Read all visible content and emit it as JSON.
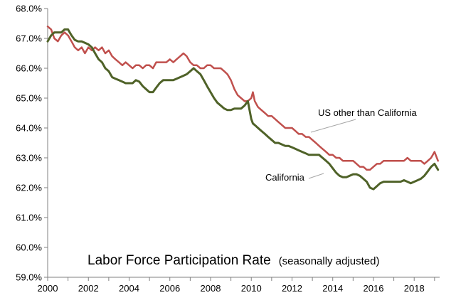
{
  "chart_data": {
    "type": "line",
    "title": "Labor Force Participation Rate",
    "subtitle": "(seasonally adjusted)",
    "xlabel": "",
    "ylabel": "",
    "xlim": [
      2000,
      2019.25
    ],
    "ylim": [
      59.0,
      68.0
    ],
    "x_ticks": [
      "2000",
      "2002",
      "2004",
      "2006",
      "2008",
      "2010",
      "2012",
      "2014",
      "2016",
      "2018"
    ],
    "y_ticks": [
      "59.0%",
      "60.0%",
      "61.0%",
      "62.0%",
      "63.0%",
      "64.0%",
      "65.0%",
      "66.0%",
      "67.0%",
      "68.0%"
    ],
    "grid": false,
    "legend": "none",
    "series": [
      {
        "name": "US other than California",
        "color": "#c0504d",
        "x": [
          2000.0,
          2000.17,
          2000.33,
          2000.5,
          2000.67,
          2000.83,
          2001.0,
          2001.17,
          2001.33,
          2001.5,
          2001.67,
          2001.83,
          2002.0,
          2002.17,
          2002.33,
          2002.5,
          2002.67,
          2002.83,
          2003.0,
          2003.17,
          2003.33,
          2003.5,
          2003.67,
          2003.83,
          2004.0,
          2004.17,
          2004.33,
          2004.5,
          2004.67,
          2004.83,
          2005.0,
          2005.17,
          2005.33,
          2005.5,
          2005.67,
          2005.83,
          2006.0,
          2006.17,
          2006.33,
          2006.5,
          2006.67,
          2006.83,
          2007.0,
          2007.17,
          2007.33,
          2007.5,
          2007.67,
          2007.83,
          2008.0,
          2008.17,
          2008.33,
          2008.5,
          2008.67,
          2008.83,
          2009.0,
          2009.17,
          2009.33,
          2009.5,
          2009.67,
          2009.83,
          2010.0,
          2010.08,
          2010.17,
          2010.33,
          2010.5,
          2010.67,
          2010.83,
          2011.0,
          2011.17,
          2011.33,
          2011.5,
          2011.67,
          2011.83,
          2012.0,
          2012.17,
          2012.33,
          2012.5,
          2012.67,
          2012.83,
          2013.0,
          2013.17,
          2013.33,
          2013.5,
          2013.67,
          2013.83,
          2014.0,
          2014.17,
          2014.33,
          2014.5,
          2014.67,
          2014.83,
          2015.0,
          2015.17,
          2015.33,
          2015.5,
          2015.67,
          2015.83,
          2016.0,
          2016.17,
          2016.33,
          2016.5,
          2016.67,
          2016.83,
          2017.0,
          2017.17,
          2017.33,
          2017.5,
          2017.67,
          2017.83,
          2018.0,
          2018.17,
          2018.33,
          2018.5,
          2018.67,
          2018.83,
          2019.0,
          2019.17
        ],
        "y": [
          67.4,
          67.3,
          67.0,
          66.9,
          67.1,
          67.2,
          67.1,
          66.9,
          66.7,
          66.6,
          66.7,
          66.5,
          66.7,
          66.6,
          66.7,
          66.6,
          66.7,
          66.5,
          66.6,
          66.4,
          66.3,
          66.2,
          66.1,
          66.2,
          66.1,
          66.0,
          66.1,
          66.1,
          66.0,
          66.1,
          66.1,
          66.0,
          66.2,
          66.2,
          66.2,
          66.2,
          66.3,
          66.2,
          66.3,
          66.4,
          66.5,
          66.4,
          66.2,
          66.1,
          66.1,
          66.0,
          66.0,
          66.1,
          66.1,
          66.0,
          66.0,
          66.0,
          65.9,
          65.8,
          65.6,
          65.3,
          65.1,
          65.0,
          64.9,
          64.9,
          65.0,
          65.2,
          64.9,
          64.7,
          64.6,
          64.5,
          64.4,
          64.4,
          64.3,
          64.2,
          64.1,
          64.0,
          64.0,
          64.0,
          63.9,
          63.8,
          63.8,
          63.7,
          63.7,
          63.6,
          63.5,
          63.4,
          63.3,
          63.2,
          63.1,
          63.1,
          63.0,
          63.0,
          62.9,
          62.9,
          62.9,
          62.9,
          62.8,
          62.7,
          62.7,
          62.6,
          62.6,
          62.7,
          62.8,
          62.8,
          62.9,
          62.9,
          62.9,
          62.9,
          62.9,
          62.9,
          62.9,
          63.0,
          62.9,
          62.9,
          62.9,
          62.9,
          62.8,
          62.9,
          63.0,
          63.2,
          62.9
        ]
      },
      {
        "name": "California",
        "color": "#4f6228",
        "x": [
          2000.0,
          2000.17,
          2000.33,
          2000.5,
          2000.67,
          2000.83,
          2001.0,
          2001.17,
          2001.33,
          2001.5,
          2001.67,
          2001.83,
          2002.0,
          2002.17,
          2002.33,
          2002.5,
          2002.67,
          2002.83,
          2003.0,
          2003.17,
          2003.33,
          2003.5,
          2003.67,
          2003.83,
          2004.0,
          2004.17,
          2004.33,
          2004.5,
          2004.67,
          2004.83,
          2005.0,
          2005.17,
          2005.33,
          2005.5,
          2005.67,
          2005.83,
          2006.0,
          2006.17,
          2006.33,
          2006.5,
          2006.67,
          2006.83,
          2007.0,
          2007.17,
          2007.33,
          2007.5,
          2007.67,
          2007.83,
          2008.0,
          2008.17,
          2008.33,
          2008.5,
          2008.67,
          2008.83,
          2009.0,
          2009.17,
          2009.33,
          2009.5,
          2009.67,
          2009.83,
          2010.0,
          2010.08,
          2010.17,
          2010.33,
          2010.5,
          2010.67,
          2010.83,
          2011.0,
          2011.17,
          2011.33,
          2011.5,
          2011.67,
          2011.83,
          2012.0,
          2012.17,
          2012.33,
          2012.5,
          2012.67,
          2012.83,
          2013.0,
          2013.17,
          2013.33,
          2013.5,
          2013.67,
          2013.83,
          2014.0,
          2014.17,
          2014.33,
          2014.5,
          2014.67,
          2014.83,
          2015.0,
          2015.17,
          2015.33,
          2015.5,
          2015.67,
          2015.83,
          2016.0,
          2016.17,
          2016.33,
          2016.5,
          2016.67,
          2016.83,
          2017.0,
          2017.17,
          2017.33,
          2017.5,
          2017.67,
          2017.83,
          2018.0,
          2018.17,
          2018.33,
          2018.5,
          2018.67,
          2018.83,
          2019.0,
          2019.17
        ],
        "y": [
          66.9,
          67.1,
          67.2,
          67.2,
          67.2,
          67.3,
          67.3,
          67.1,
          66.95,
          66.9,
          66.9,
          66.85,
          66.8,
          66.7,
          66.5,
          66.3,
          66.2,
          66.0,
          65.9,
          65.7,
          65.65,
          65.6,
          65.55,
          65.5,
          65.5,
          65.5,
          65.6,
          65.55,
          65.4,
          65.3,
          65.2,
          65.2,
          65.35,
          65.5,
          65.6,
          65.6,
          65.6,
          65.6,
          65.65,
          65.7,
          65.75,
          65.8,
          65.9,
          66.0,
          65.9,
          65.8,
          65.6,
          65.4,
          65.2,
          65.0,
          64.85,
          64.75,
          64.65,
          64.6,
          64.6,
          64.65,
          64.65,
          64.65,
          64.75,
          64.9,
          64.3,
          64.15,
          64.1,
          64.0,
          63.9,
          63.8,
          63.7,
          63.6,
          63.5,
          63.5,
          63.45,
          63.4,
          63.4,
          63.35,
          63.3,
          63.25,
          63.2,
          63.15,
          63.1,
          63.1,
          63.1,
          63.1,
          63.0,
          62.9,
          62.8,
          62.65,
          62.5,
          62.4,
          62.35,
          62.35,
          62.4,
          62.45,
          62.45,
          62.4,
          62.3,
          62.2,
          62.0,
          61.95,
          62.05,
          62.15,
          62.2,
          62.2,
          62.2,
          62.2,
          62.2,
          62.2,
          62.25,
          62.2,
          62.15,
          62.2,
          62.25,
          62.3,
          62.4,
          62.55,
          62.7,
          62.8,
          62.6
        ]
      }
    ],
    "annotations": [
      {
        "text": "US other than California",
        "series": "US other than California"
      },
      {
        "text": "California",
        "series": "California"
      }
    ]
  }
}
